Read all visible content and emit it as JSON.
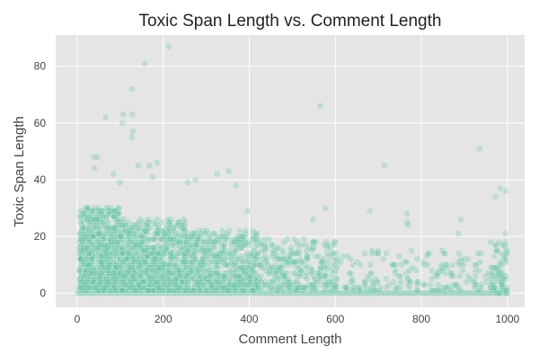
{
  "chart_data": {
    "type": "scatter",
    "title": "Toxic Span Length vs. Comment Length",
    "xlabel": "Comment Length",
    "ylabel": "Toxic Span Length",
    "xlim": [
      -50,
      1040
    ],
    "ylim": [
      -5,
      91
    ],
    "xticks": [
      0,
      200,
      400,
      600,
      800,
      1000
    ],
    "yticks": [
      0,
      20,
      40,
      60,
      80
    ],
    "grid": true,
    "legend": "none",
    "colors": {
      "marker": "#66c2a5",
      "background": "#e5e5e5",
      "grid": "#ffffff"
    },
    "marker_alpha": 0.3,
    "outliers": [
      {
        "x": 213,
        "y": 87
      },
      {
        "x": 157,
        "y": 81
      },
      {
        "x": 128,
        "y": 72
      },
      {
        "x": 565,
        "y": 66
      },
      {
        "x": 128,
        "y": 63
      },
      {
        "x": 107,
        "y": 63
      },
      {
        "x": 66,
        "y": 62
      },
      {
        "x": 105,
        "y": 60
      },
      {
        "x": 130,
        "y": 57
      },
      {
        "x": 127,
        "y": 55
      },
      {
        "x": 935,
        "y": 51
      },
      {
        "x": 39,
        "y": 48
      },
      {
        "x": 47,
        "y": 48
      },
      {
        "x": 186,
        "y": 46
      },
      {
        "x": 142,
        "y": 45
      },
      {
        "x": 168,
        "y": 45
      },
      {
        "x": 714,
        "y": 45
      },
      {
        "x": 40,
        "y": 44
      },
      {
        "x": 352,
        "y": 43
      },
      {
        "x": 325,
        "y": 42
      },
      {
        "x": 84,
        "y": 42
      },
      {
        "x": 176,
        "y": 41
      },
      {
        "x": 275,
        "y": 40
      },
      {
        "x": 99,
        "y": 39
      },
      {
        "x": 257,
        "y": 39
      },
      {
        "x": 369,
        "y": 38
      },
      {
        "x": 983,
        "y": 37
      },
      {
        "x": 996,
        "y": 36
      },
      {
        "x": 972,
        "y": 34
      },
      {
        "x": 577,
        "y": 30
      },
      {
        "x": 396,
        "y": 29
      },
      {
        "x": 680,
        "y": 29
      },
      {
        "x": 767,
        "y": 28
      },
      {
        "x": 892,
        "y": 26
      },
      {
        "x": 767,
        "y": 25
      },
      {
        "x": 769,
        "y": 24
      },
      {
        "x": 548,
        "y": 26
      },
      {
        "x": 995,
        "y": 21
      },
      {
        "x": 886,
        "y": 21
      }
    ],
    "dense_regions": [
      {
        "x": [
          5,
          100
        ],
        "y": [
          1,
          30
        ],
        "n": 900
      },
      {
        "x": [
          100,
          250
        ],
        "y": [
          1,
          26
        ],
        "n": 850
      },
      {
        "x": [
          250,
          420
        ],
        "y": [
          1,
          22
        ],
        "n": 600
      },
      {
        "x": [
          420,
          600
        ],
        "y": [
          1,
          19
        ],
        "n": 280
      },
      {
        "x": [
          600,
          1000
        ],
        "y": [
          1,
          15
        ],
        "n": 210
      }
    ],
    "zero_line": {
      "y": 0,
      "x": [
        0,
        1000
      ],
      "n": 180
    },
    "x_edge_cluster": {
      "x": [
        960,
        1000
      ],
      "y": [
        0,
        20
      ],
      "n": 60
    }
  }
}
